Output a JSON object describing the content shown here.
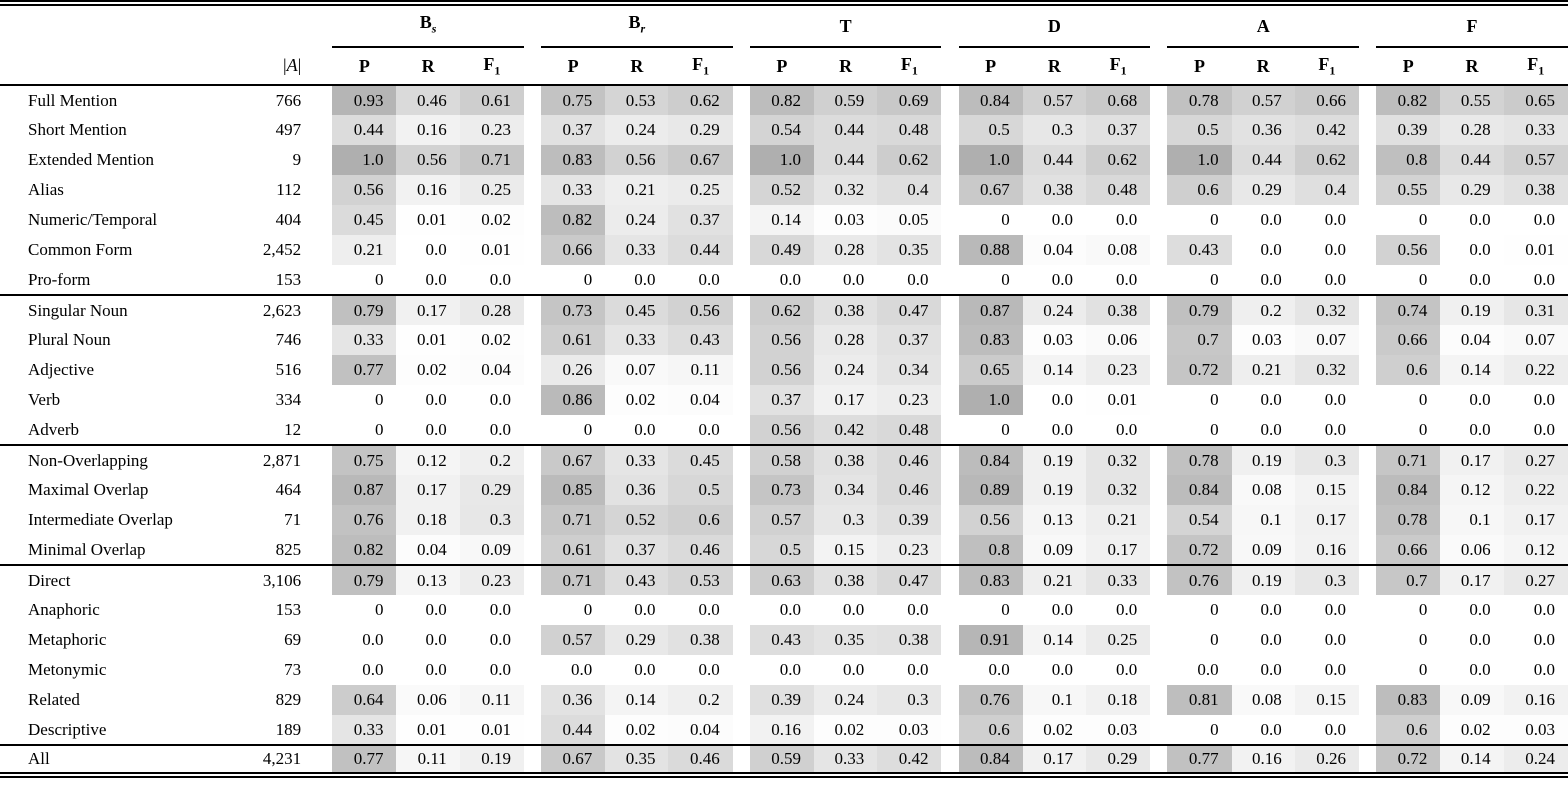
{
  "table": {
    "a_header": "|A|",
    "groups": [
      {
        "label": "B",
        "sub": "s",
        "sub_italic": true
      },
      {
        "label": "B",
        "sub": "r",
        "sub_italic": true
      },
      {
        "label": "T",
        "sub": "",
        "sub_italic": false
      },
      {
        "label": "D",
        "sub": "",
        "sub_italic": false
      },
      {
        "label": "A",
        "sub": "",
        "sub_italic": false
      },
      {
        "label": "F",
        "sub": "",
        "sub_italic": false
      }
    ],
    "metrics": [
      {
        "label": "P",
        "sub": ""
      },
      {
        "label": "R",
        "sub": ""
      },
      {
        "label": "F",
        "sub": "1"
      }
    ],
    "heatmap": {
      "zero_color": "#ffffff",
      "max_color": "#afafaf",
      "darkness_per_unit": 80
    },
    "sections": [
      {
        "rows": [
          {
            "label": "Full Mention",
            "count": "766",
            "values": [
              "0.93",
              "0.46",
              "0.61",
              "0.75",
              "0.53",
              "0.62",
              "0.82",
              "0.59",
              "0.69",
              "0.84",
              "0.57",
              "0.68",
              "0.78",
              "0.57",
              "0.66",
              "0.82",
              "0.55",
              "0.65"
            ]
          },
          {
            "label": "Short Mention",
            "count": "497",
            "values": [
              "0.44",
              "0.16",
              "0.23",
              "0.37",
              "0.24",
              "0.29",
              "0.54",
              "0.44",
              "0.48",
              "0.5",
              "0.3",
              "0.37",
              "0.5",
              "0.36",
              "0.42",
              "0.39",
              "0.28",
              "0.33"
            ]
          },
          {
            "label": "Extended Mention",
            "count": "9",
            "values": [
              "1.0",
              "0.56",
              "0.71",
              "0.83",
              "0.56",
              "0.67",
              "1.0",
              "0.44",
              "0.62",
              "1.0",
              "0.44",
              "0.62",
              "1.0",
              "0.44",
              "0.62",
              "0.8",
              "0.44",
              "0.57"
            ]
          },
          {
            "label": "Alias",
            "count": "112",
            "values": [
              "0.56",
              "0.16",
              "0.25",
              "0.33",
              "0.21",
              "0.25",
              "0.52",
              "0.32",
              "0.4",
              "0.67",
              "0.38",
              "0.48",
              "0.6",
              "0.29",
              "0.4",
              "0.55",
              "0.29",
              "0.38"
            ]
          },
          {
            "label": "Numeric/Temporal",
            "count": "404",
            "values": [
              "0.45",
              "0.01",
              "0.02",
              "0.82",
              "0.24",
              "0.37",
              "0.14",
              "0.03",
              "0.05",
              "0",
              "0.0",
              "0.0",
              "0",
              "0.0",
              "0.0",
              "0",
              "0.0",
              "0.0"
            ]
          },
          {
            "label": "Common Form",
            "count": "2,452",
            "values": [
              "0.21",
              "0.0",
              "0.01",
              "0.66",
              "0.33",
              "0.44",
              "0.49",
              "0.28",
              "0.35",
              "0.88",
              "0.04",
              "0.08",
              "0.43",
              "0.0",
              "0.0",
              "0.56",
              "0.0",
              "0.01"
            ]
          },
          {
            "label": "Pro-form",
            "count": "153",
            "values": [
              "0",
              "0.0",
              "0.0",
              "0",
              "0.0",
              "0.0",
              "0.0",
              "0.0",
              "0.0",
              "0",
              "0.0",
              "0.0",
              "0",
              "0.0",
              "0.0",
              "0",
              "0.0",
              "0.0"
            ]
          }
        ]
      },
      {
        "rows": [
          {
            "label": "Singular Noun",
            "count": "2,623",
            "values": [
              "0.79",
              "0.17",
              "0.28",
              "0.73",
              "0.45",
              "0.56",
              "0.62",
              "0.38",
              "0.47",
              "0.87",
              "0.24",
              "0.38",
              "0.79",
              "0.2",
              "0.32",
              "0.74",
              "0.19",
              "0.31"
            ]
          },
          {
            "label": "Plural Noun",
            "count": "746",
            "values": [
              "0.33",
              "0.01",
              "0.02",
              "0.61",
              "0.33",
              "0.43",
              "0.56",
              "0.28",
              "0.37",
              "0.83",
              "0.03",
              "0.06",
              "0.7",
              "0.03",
              "0.07",
              "0.66",
              "0.04",
              "0.07"
            ]
          },
          {
            "label": "Adjective",
            "count": "516",
            "values": [
              "0.77",
              "0.02",
              "0.04",
              "0.26",
              "0.07",
              "0.11",
              "0.56",
              "0.24",
              "0.34",
              "0.65",
              "0.14",
              "0.23",
              "0.72",
              "0.21",
              "0.32",
              "0.6",
              "0.14",
              "0.22"
            ]
          },
          {
            "label": "Verb",
            "count": "334",
            "values": [
              "0",
              "0.0",
              "0.0",
              "0.86",
              "0.02",
              "0.04",
              "0.37",
              "0.17",
              "0.23",
              "1.0",
              "0.0",
              "0.01",
              "0",
              "0.0",
              "0.0",
              "0",
              "0.0",
              "0.0"
            ]
          },
          {
            "label": "Adverb",
            "count": "12",
            "values": [
              "0",
              "0.0",
              "0.0",
              "0",
              "0.0",
              "0.0",
              "0.56",
              "0.42",
              "0.48",
              "0",
              "0.0",
              "0.0",
              "0",
              "0.0",
              "0.0",
              "0",
              "0.0",
              "0.0"
            ]
          }
        ]
      },
      {
        "rows": [
          {
            "label": "Non-Overlapping",
            "count": "2,871",
            "values": [
              "0.75",
              "0.12",
              "0.2",
              "0.67",
              "0.33",
              "0.45",
              "0.58",
              "0.38",
              "0.46",
              "0.84",
              "0.19",
              "0.32",
              "0.78",
              "0.19",
              "0.3",
              "0.71",
              "0.17",
              "0.27"
            ]
          },
          {
            "label": "Maximal Overlap",
            "count": "464",
            "values": [
              "0.87",
              "0.17",
              "0.29",
              "0.85",
              "0.36",
              "0.5",
              "0.73",
              "0.34",
              "0.46",
              "0.89",
              "0.19",
              "0.32",
              "0.84",
              "0.08",
              "0.15",
              "0.84",
              "0.12",
              "0.22"
            ]
          },
          {
            "label": "Intermediate Overlap",
            "count": "71",
            "values": [
              "0.76",
              "0.18",
              "0.3",
              "0.71",
              "0.52",
              "0.6",
              "0.57",
              "0.3",
              "0.39",
              "0.56",
              "0.13",
              "0.21",
              "0.54",
              "0.1",
              "0.17",
              "0.78",
              "0.1",
              "0.17"
            ]
          },
          {
            "label": "Minimal Overlap",
            "count": "825",
            "values": [
              "0.82",
              "0.04",
              "0.09",
              "0.61",
              "0.37",
              "0.46",
              "0.5",
              "0.15",
              "0.23",
              "0.8",
              "0.09",
              "0.17",
              "0.72",
              "0.09",
              "0.16",
              "0.66",
              "0.06",
              "0.12"
            ]
          }
        ]
      },
      {
        "rows": [
          {
            "label": "Direct",
            "count": "3,106",
            "values": [
              "0.79",
              "0.13",
              "0.23",
              "0.71",
              "0.43",
              "0.53",
              "0.63",
              "0.38",
              "0.47",
              "0.83",
              "0.21",
              "0.33",
              "0.76",
              "0.19",
              "0.3",
              "0.7",
              "0.17",
              "0.27"
            ]
          },
          {
            "label": "Anaphoric",
            "count": "153",
            "values": [
              "0",
              "0.0",
              "0.0",
              "0",
              "0.0",
              "0.0",
              "0.0",
              "0.0",
              "0.0",
              "0",
              "0.0",
              "0.0",
              "0",
              "0.0",
              "0.0",
              "0",
              "0.0",
              "0.0"
            ]
          },
          {
            "label": "Metaphoric",
            "count": "69",
            "values": [
              "0.0",
              "0.0",
              "0.0",
              "0.57",
              "0.29",
              "0.38",
              "0.43",
              "0.35",
              "0.38",
              "0.91",
              "0.14",
              "0.25",
              "0",
              "0.0",
              "0.0",
              "0",
              "0.0",
              "0.0"
            ]
          },
          {
            "label": "Metonymic",
            "count": "73",
            "values": [
              "0.0",
              "0.0",
              "0.0",
              "0.0",
              "0.0",
              "0.0",
              "0.0",
              "0.0",
              "0.0",
              "0.0",
              "0.0",
              "0.0",
              "0.0",
              "0.0",
              "0.0",
              "0",
              "0.0",
              "0.0"
            ]
          },
          {
            "label": "Related",
            "count": "829",
            "values": [
              "0.64",
              "0.06",
              "0.11",
              "0.36",
              "0.14",
              "0.2",
              "0.39",
              "0.24",
              "0.3",
              "0.76",
              "0.1",
              "0.18",
              "0.81",
              "0.08",
              "0.15",
              "0.83",
              "0.09",
              "0.16"
            ]
          },
          {
            "label": "Descriptive",
            "count": "189",
            "values": [
              "0.33",
              "0.01",
              "0.01",
              "0.44",
              "0.02",
              "0.04",
              "0.16",
              "0.02",
              "0.03",
              "0.6",
              "0.02",
              "0.03",
              "0",
              "0.0",
              "0.0",
              "0.6",
              "0.02",
              "0.03"
            ]
          }
        ]
      },
      {
        "rows": [
          {
            "label": "All",
            "count": "4,231",
            "values": [
              "0.77",
              "0.11",
              "0.19",
              "0.67",
              "0.35",
              "0.46",
              "0.59",
              "0.33",
              "0.42",
              "0.84",
              "0.17",
              "0.29",
              "0.77",
              "0.16",
              "0.26",
              "0.72",
              "0.14",
              "0.24"
            ]
          }
        ]
      }
    ]
  }
}
